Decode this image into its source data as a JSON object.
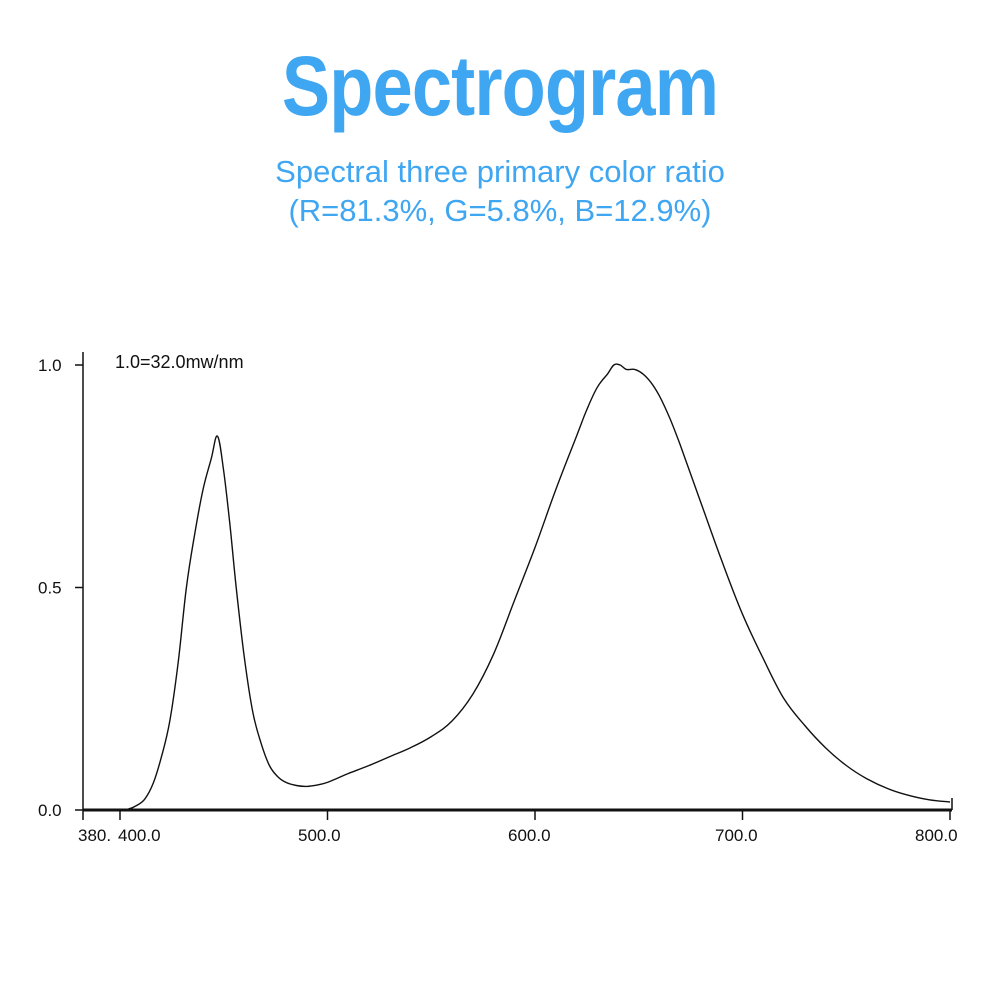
{
  "header": {
    "title": "Spectrogram",
    "subtitle_line1": "Spectral three primary color ratio",
    "subtitle_line2": "(R=81.3%, G=5.8%, B=12.9%)"
  },
  "colors": {
    "accent": "#3fa6f2",
    "axis": "#111111",
    "curve": "#111111"
  },
  "chart_data": {
    "type": "line",
    "title": "",
    "xlabel": "",
    "ylabel": "",
    "annotation": "1.0=32.0mw/nm",
    "xlim": [
      380,
      800
    ],
    "ylim": [
      0,
      1
    ],
    "grid": false,
    "x_tick_labels": [
      "380.",
      "400.0",
      "500.0",
      "600.0",
      "700.0",
      "800.0"
    ],
    "x_tick_values": [
      380,
      400,
      500,
      600,
      700,
      800
    ],
    "y_tick_labels": [
      "0.0",
      "0.5",
      "1.0"
    ],
    "y_tick_values": [
      0,
      0.5,
      1.0
    ],
    "series": [
      {
        "x": [
          400,
          404,
          408,
          412,
          416,
          420,
          424,
          428,
          432,
          436,
          440,
          444,
          447,
          450,
          453,
          456,
          460,
          464,
          468,
          472,
          476,
          480,
          485,
          490,
          495,
          500,
          505,
          510,
          520,
          530,
          540,
          550,
          560,
          570,
          580,
          590,
          600,
          610,
          620,
          625,
          630,
          635,
          638,
          641,
          644,
          648,
          652,
          656,
          660,
          665,
          670,
          680,
          690,
          700,
          710,
          720,
          730,
          740,
          750,
          760,
          770,
          780,
          790,
          800
        ],
        "y": [
          0.0,
          0.002,
          0.01,
          0.025,
          0.06,
          0.12,
          0.2,
          0.33,
          0.5,
          0.62,
          0.72,
          0.79,
          0.84,
          0.76,
          0.64,
          0.5,
          0.34,
          0.22,
          0.15,
          0.1,
          0.075,
          0.062,
          0.055,
          0.053,
          0.056,
          0.062,
          0.072,
          0.082,
          0.1,
          0.12,
          0.14,
          0.165,
          0.2,
          0.26,
          0.35,
          0.47,
          0.59,
          0.72,
          0.84,
          0.9,
          0.95,
          0.98,
          1.0,
          1.0,
          0.99,
          0.99,
          0.98,
          0.96,
          0.93,
          0.88,
          0.82,
          0.69,
          0.56,
          0.44,
          0.34,
          0.25,
          0.19,
          0.14,
          0.1,
          0.07,
          0.048,
          0.033,
          0.023,
          0.018
        ]
      }
    ]
  }
}
